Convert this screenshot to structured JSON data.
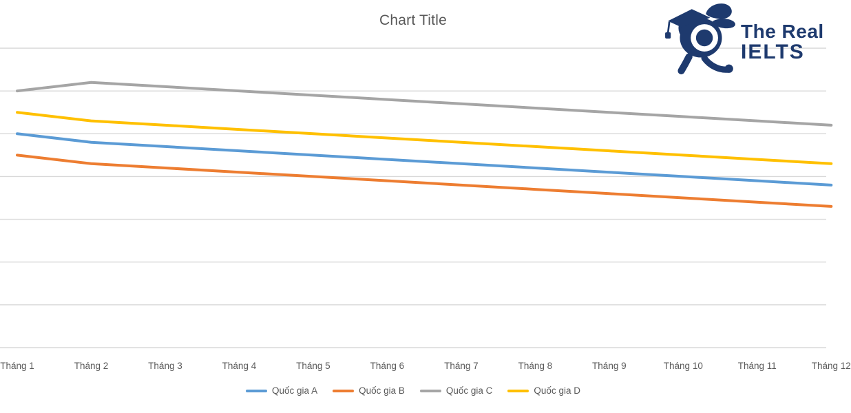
{
  "chart_data": {
    "type": "line",
    "title": "Chart Title",
    "categories": [
      "Tháng 1",
      "Tháng 2",
      "Tháng 3",
      "Tháng 4",
      "Tháng 5",
      "Tháng 6",
      "Tháng 7",
      "Tháng 8",
      "Tháng 9",
      "Tháng 10",
      "Tháng 11",
      "Tháng 12"
    ],
    "series": [
      {
        "name": "Quốc gia A",
        "color": "#5B9BD5",
        "values": [
          50,
          48,
          47,
          46,
          45,
          44,
          43,
          42,
          41,
          40,
          39,
          38
        ]
      },
      {
        "name": "Quốc gia B",
        "color": "#ED7D31",
        "values": [
          45,
          43,
          42,
          41,
          40,
          39,
          38,
          37,
          36,
          35,
          34,
          33
        ]
      },
      {
        "name": "Quốc gia C",
        "color": "#A5A5A5",
        "values": [
          60,
          62,
          61,
          60,
          59,
          58,
          57,
          56,
          55,
          54,
          53,
          52
        ]
      },
      {
        "name": "Quốc gia D",
        "color": "#FFC000",
        "values": [
          55,
          53,
          52,
          51,
          50,
          49,
          48,
          47,
          46,
          45,
          44,
          43
        ]
      }
    ],
    "xlabel": "",
    "ylabel": "",
    "ylim": [
      0,
      70
    ],
    "grid_step": 10,
    "grid_on": true,
    "y_tick_labels_visible": false,
    "legend_position": "bottom"
  },
  "colors": {
    "gridline": "#d9d9d9",
    "axis_line": "#d9d9d9",
    "title_text": "#595959",
    "axis_text": "#595959",
    "legend_text": "#595959",
    "logo_navy": "#1e3a6e"
  },
  "logo": {
    "line1": "The Real",
    "line2": "IELTS",
    "mascot": "rabbit-with-graduation-cap-icon"
  }
}
